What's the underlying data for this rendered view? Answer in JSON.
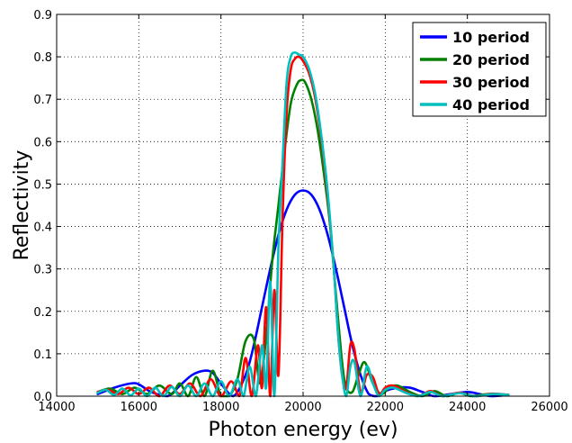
{
  "chart_data": {
    "type": "line",
    "xlabel": "Photon energy (ev)",
    "ylabel": "Reflectivity",
    "xlim": [
      14000,
      26000
    ],
    "ylim": [
      0.0,
      0.9
    ],
    "xticks": [
      "14000",
      "16000",
      "18000",
      "20000",
      "22000",
      "24000",
      "26000"
    ],
    "yticks": [
      "0.0",
      "0.1",
      "0.2",
      "0.3",
      "0.4",
      "0.5",
      "0.6",
      "0.7",
      "0.8",
      "0.9"
    ],
    "grid": true,
    "legend_position": "top-right",
    "series": [
      {
        "name": "10 period",
        "color": "#0000ff",
        "x": [
          15000,
          15400,
          15800,
          16000,
          16300,
          16700,
          17000,
          17300,
          17600,
          17800,
          18000,
          18300,
          18600,
          18800,
          19000,
          19200,
          19400,
          19600,
          19800,
          20000,
          20200,
          20400,
          20600,
          20800,
          21000,
          21200,
          21400,
          21600,
          21800,
          22000,
          22300,
          22600,
          22900,
          23200,
          23600,
          24000,
          24300,
          24600,
          25000
        ],
        "y": [
          0.005,
          0.02,
          0.03,
          0.028,
          0.01,
          0.0,
          0.025,
          0.05,
          0.06,
          0.055,
          0.03,
          0.0,
          0.05,
          0.12,
          0.21,
          0.3,
          0.38,
          0.44,
          0.475,
          0.485,
          0.475,
          0.44,
          0.38,
          0.3,
          0.21,
          0.12,
          0.05,
          0.005,
          0.0,
          0.012,
          0.02,
          0.02,
          0.01,
          0.0,
          0.005,
          0.01,
          0.005,
          0.0,
          0.003
        ]
      },
      {
        "name": "20 period",
        "color": "#008000",
        "x": [
          15000,
          15300,
          15600,
          15900,
          16200,
          16500,
          16800,
          17000,
          17200,
          17400,
          17600,
          17800,
          18000,
          18200,
          18400,
          18600,
          18800,
          18950,
          19100,
          19250,
          19400,
          19550,
          19700,
          19850,
          19950,
          20050,
          20200,
          20350,
          20500,
          20650,
          20800,
          20950,
          21050,
          21200,
          21350,
          21500,
          21700,
          21900,
          22100,
          22300,
          22600,
          22900,
          23200,
          23500,
          23800,
          24100,
          24500,
          25000
        ],
        "y": [
          0.01,
          0.018,
          0.005,
          0.02,
          0.005,
          0.025,
          0.005,
          0.03,
          0.0,
          0.045,
          0.0,
          0.06,
          0.0,
          0.0,
          0.04,
          0.13,
          0.135,
          0.03,
          0.14,
          0.32,
          0.45,
          0.58,
          0.69,
          0.735,
          0.745,
          0.74,
          0.7,
          0.63,
          0.53,
          0.41,
          0.24,
          0.08,
          0.02,
          0.01,
          0.05,
          0.08,
          0.03,
          0.005,
          0.02,
          0.025,
          0.01,
          0.0,
          0.012,
          0.0,
          0.008,
          0.0,
          0.005,
          0.003
        ]
      },
      {
        "name": "30 period",
        "color": "#ff0000",
        "x": [
          15000,
          15250,
          15500,
          15750,
          16000,
          16250,
          16500,
          16750,
          17000,
          17250,
          17500,
          17750,
          18000,
          18250,
          18450,
          18600,
          18750,
          18900,
          19000,
          19100,
          19200,
          19300,
          19400,
          19500,
          19600,
          19700,
          19800,
          19900,
          20000,
          20150,
          20300,
          20450,
          20600,
          20750,
          20850,
          20950,
          21050,
          21150,
          21250,
          21400,
          21550,
          21700,
          21850,
          22000,
          22200,
          22500,
          22800,
          23100,
          23400,
          23800,
          24200,
          24600,
          25000
        ],
        "y": [
          0.01,
          0.015,
          0.005,
          0.02,
          0.005,
          0.02,
          0.0,
          0.025,
          0.005,
          0.03,
          0.0,
          0.04,
          0.0,
          0.035,
          0.0,
          0.09,
          0.0,
          0.12,
          0.02,
          0.21,
          0.0,
          0.25,
          0.05,
          0.42,
          0.67,
          0.77,
          0.795,
          0.8,
          0.79,
          0.76,
          0.7,
          0.6,
          0.47,
          0.3,
          0.15,
          0.05,
          0.02,
          0.12,
          0.11,
          0.01,
          0.05,
          0.045,
          0.005,
          0.02,
          0.025,
          0.01,
          0.0,
          0.012,
          0.0,
          0.008,
          0.0,
          0.006,
          0.003
        ]
      },
      {
        "name": "40 period",
        "color": "#00bfbf",
        "x": [
          15000,
          15200,
          15400,
          15600,
          15800,
          16000,
          16200,
          16400,
          16600,
          16800,
          17000,
          17200,
          17400,
          17600,
          17800,
          18000,
          18200,
          18400,
          18550,
          18700,
          18850,
          19000,
          19100,
          19200,
          19300,
          19400,
          19500,
          19600,
          19700,
          19800,
          19900,
          20000,
          20150,
          20300,
          20450,
          20600,
          20750,
          20850,
          20950,
          21050,
          21150,
          21250,
          21400,
          21550,
          21700,
          21850,
          22000,
          22200,
          22500,
          22800,
          23100,
          23400,
          23800,
          24200,
          24600,
          25000
        ],
        "y": [
          0.008,
          0.015,
          0.003,
          0.018,
          0.002,
          0.018,
          0.0,
          0.02,
          0.0,
          0.022,
          0.0,
          0.025,
          0.0,
          0.03,
          0.0,
          0.035,
          0.0,
          0.04,
          0.0,
          0.07,
          0.0,
          0.12,
          0.02,
          0.27,
          0.0,
          0.35,
          0.55,
          0.74,
          0.8,
          0.81,
          0.805,
          0.8,
          0.77,
          0.71,
          0.61,
          0.48,
          0.3,
          0.15,
          0.05,
          0.0,
          0.07,
          0.08,
          0.0,
          0.07,
          0.03,
          0.0,
          0.015,
          0.02,
          0.008,
          0.0,
          0.01,
          0.0,
          0.007,
          0.0,
          0.005,
          0.003
        ]
      }
    ]
  }
}
